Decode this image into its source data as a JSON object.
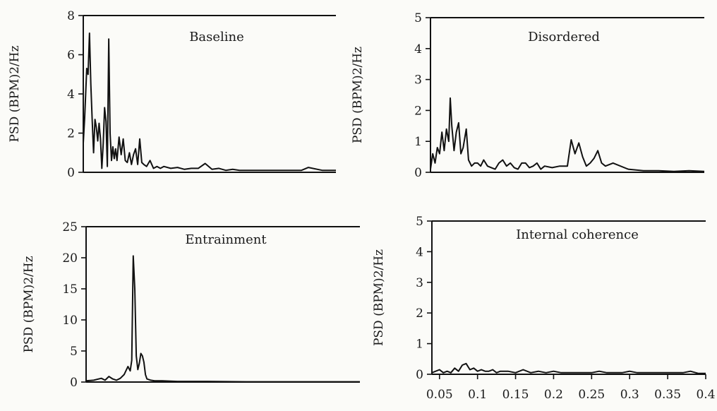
{
  "chart_data": [
    {
      "type": "line",
      "title": "Baseline",
      "ylabel": "PSD (BPM)2/Hz",
      "xlabel": "",
      "xlim": [
        0.033,
        0.4
      ],
      "ylim": [
        0,
        8
      ],
      "yticks": [
        "0",
        "2",
        "4",
        "6",
        "8"
      ],
      "xticks": [],
      "x": [
        0.033,
        0.035,
        0.038,
        0.04,
        0.042,
        0.044,
        0.046,
        0.048,
        0.05,
        0.052,
        0.054,
        0.056,
        0.058,
        0.06,
        0.062,
        0.064,
        0.066,
        0.068,
        0.07,
        0.072,
        0.074,
        0.076,
        0.078,
        0.08,
        0.082,
        0.085,
        0.088,
        0.091,
        0.094,
        0.097,
        0.1,
        0.103,
        0.106,
        0.109,
        0.112,
        0.115,
        0.118,
        0.121,
        0.125,
        0.13,
        0.135,
        0.14,
        0.145,
        0.15,
        0.16,
        0.17,
        0.18,
        0.19,
        0.2,
        0.21,
        0.22,
        0.23,
        0.24,
        0.25,
        0.26,
        0.27,
        0.28,
        0.3,
        0.32,
        0.34,
        0.35,
        0.36,
        0.38,
        0.4
      ],
      "values": [
        1.5,
        2.8,
        5.3,
        5.0,
        7.1,
        4.5,
        2.6,
        1.0,
        2.7,
        2.3,
        1.6,
        2.5,
        1.7,
        0.2,
        1.5,
        3.3,
        2.6,
        0.3,
        6.8,
        2.0,
        0.6,
        1.3,
        0.7,
        1.2,
        0.6,
        1.8,
        0.9,
        1.7,
        0.6,
        0.5,
        1.0,
        0.4,
        0.9,
        1.2,
        0.4,
        1.7,
        0.5,
        0.4,
        0.3,
        0.6,
        0.2,
        0.3,
        0.2,
        0.3,
        0.2,
        0.25,
        0.15,
        0.2,
        0.2,
        0.45,
        0.15,
        0.2,
        0.1,
        0.15,
        0.1,
        0.1,
        0.1,
        0.1,
        0.1,
        0.1,
        0.1,
        0.25,
        0.1,
        0.1
      ]
    },
    {
      "type": "line",
      "title": "Disordered",
      "ylabel": "PSD (BPM)2/Hz",
      "xlabel": "",
      "xlim": [
        0.04,
        0.4
      ],
      "ylim": [
        0,
        5
      ],
      "yticks": [
        "0",
        "1",
        "2",
        "3",
        "4",
        "5"
      ],
      "xticks": [],
      "x": [
        0.04,
        0.043,
        0.046,
        0.049,
        0.052,
        0.055,
        0.058,
        0.061,
        0.064,
        0.066,
        0.068,
        0.071,
        0.074,
        0.077,
        0.08,
        0.083,
        0.087,
        0.09,
        0.094,
        0.098,
        0.102,
        0.106,
        0.11,
        0.115,
        0.12,
        0.125,
        0.13,
        0.135,
        0.14,
        0.145,
        0.15,
        0.155,
        0.16,
        0.165,
        0.17,
        0.175,
        0.18,
        0.185,
        0.19,
        0.2,
        0.21,
        0.22,
        0.225,
        0.23,
        0.235,
        0.24,
        0.245,
        0.25,
        0.255,
        0.26,
        0.265,
        0.27,
        0.28,
        0.3,
        0.32,
        0.34,
        0.36,
        0.38,
        0.4
      ],
      "values": [
        0.1,
        0.6,
        0.3,
        0.8,
        0.6,
        1.3,
        0.7,
        1.4,
        1.0,
        2.4,
        1.5,
        0.7,
        1.3,
        1.6,
        0.6,
        0.8,
        1.4,
        0.4,
        0.2,
        0.3,
        0.3,
        0.2,
        0.4,
        0.2,
        0.15,
        0.1,
        0.3,
        0.4,
        0.2,
        0.3,
        0.15,
        0.1,
        0.3,
        0.3,
        0.15,
        0.2,
        0.3,
        0.1,
        0.2,
        0.15,
        0.2,
        0.2,
        1.05,
        0.6,
        0.95,
        0.5,
        0.2,
        0.3,
        0.45,
        0.7,
        0.3,
        0.2,
        0.3,
        0.1,
        0.05,
        0.05,
        0.03,
        0.05,
        0.03
      ]
    },
    {
      "type": "line",
      "title": "Entrainment",
      "ylabel": "PSD (BPM)2/Hz",
      "xlabel": "",
      "xlim": [
        0.04,
        0.4
      ],
      "ylim": [
        0,
        25
      ],
      "yticks": [
        "0",
        "5",
        "10",
        "15",
        "20",
        "25"
      ],
      "xticks": [],
      "x": [
        0.04,
        0.05,
        0.06,
        0.065,
        0.07,
        0.075,
        0.08,
        0.085,
        0.09,
        0.095,
        0.098,
        0.1,
        0.102,
        0.104,
        0.106,
        0.108,
        0.11,
        0.112,
        0.114,
        0.116,
        0.118,
        0.12,
        0.125,
        0.13,
        0.14,
        0.16,
        0.2,
        0.25,
        0.3,
        0.35,
        0.4
      ],
      "values": [
        0.2,
        0.3,
        0.6,
        0.3,
        0.9,
        0.5,
        0.3,
        0.6,
        1.2,
        2.5,
        1.8,
        3.5,
        20.3,
        15.0,
        4.2,
        2.0,
        3.0,
        4.6,
        4.2,
        3.2,
        1.2,
        0.5,
        0.3,
        0.2,
        0.2,
        0.1,
        0.1,
        0.05,
        0.05,
        0.05,
        0.05
      ]
    },
    {
      "type": "line",
      "title": "Internal coherence",
      "ylabel": "PSD (BPM)2/Hz",
      "xlabel": "",
      "xlim": [
        0.04,
        0.4
      ],
      "ylim": [
        0,
        5
      ],
      "yticks": [
        "0",
        "1",
        "2",
        "3",
        "4",
        "5"
      ],
      "xticks": [
        "0.05",
        "0.1",
        "0.15",
        "0.2",
        "0.25",
        "0.3",
        "0.35",
        "0.4"
      ],
      "x": [
        0.04,
        0.05,
        0.055,
        0.06,
        0.065,
        0.07,
        0.075,
        0.08,
        0.085,
        0.09,
        0.095,
        0.1,
        0.105,
        0.11,
        0.115,
        0.12,
        0.125,
        0.13,
        0.14,
        0.15,
        0.16,
        0.17,
        0.18,
        0.19,
        0.2,
        0.21,
        0.22,
        0.23,
        0.24,
        0.25,
        0.26,
        0.27,
        0.28,
        0.29,
        0.3,
        0.31,
        0.32,
        0.33,
        0.34,
        0.35,
        0.36,
        0.37,
        0.38,
        0.39,
        0.4
      ],
      "values": [
        0.05,
        0.15,
        0.05,
        0.1,
        0.05,
        0.2,
        0.1,
        0.3,
        0.35,
        0.15,
        0.2,
        0.1,
        0.15,
        0.1,
        0.1,
        0.15,
        0.05,
        0.1,
        0.1,
        0.05,
        0.15,
        0.05,
        0.1,
        0.05,
        0.1,
        0.05,
        0.05,
        0.05,
        0.05,
        0.05,
        0.1,
        0.05,
        0.05,
        0.05,
        0.1,
        0.05,
        0.05,
        0.05,
        0.05,
        0.05,
        0.05,
        0.05,
        0.1,
        0.03,
        0.03
      ]
    }
  ]
}
